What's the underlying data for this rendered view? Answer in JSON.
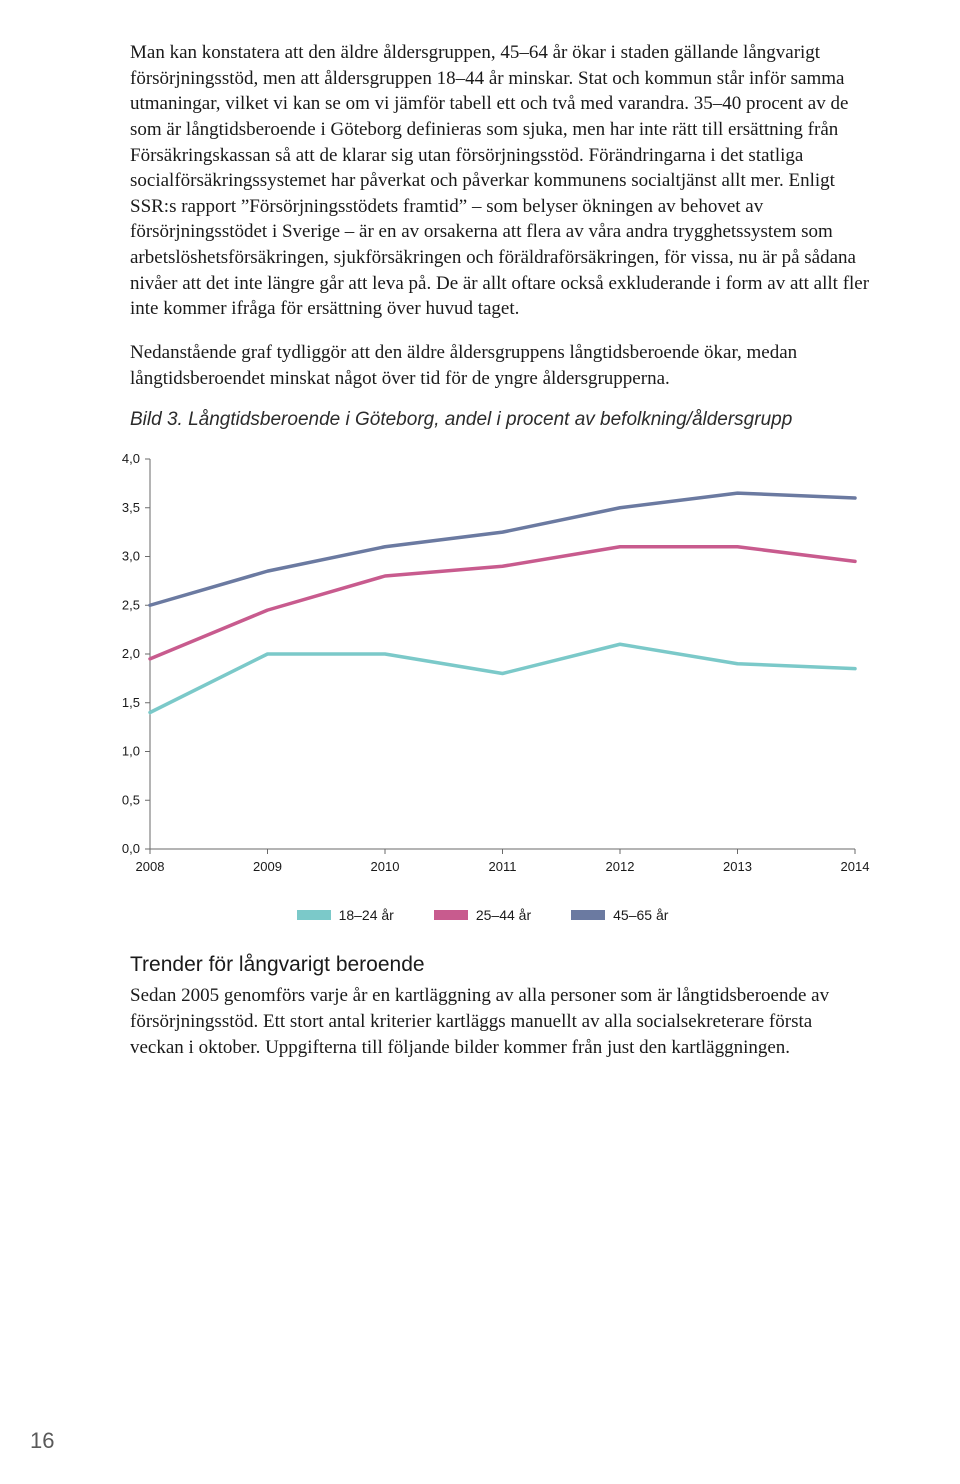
{
  "paragraphs": {
    "p1": "Man kan konstatera att den äldre åldersgruppen, 45–64 år ökar i staden gällande långvarigt försörjningsstöd, men att åldersgruppen 18–44 år minskar. Stat och kommun står inför samma utmaningar, vilket vi kan se om vi jämför tabell ett och två med varandra. 35–40 procent av de som är långtidsberoende i Göteborg definieras som sjuka, men har inte rätt till ersättning från Försäkringskassan så att de klarar sig utan försörjningsstöd. Förändringarna i det statliga socialförsäkringssystemet har påverkat och påverkar kommunens socialtjänst allt mer. Enligt SSR:s rapport ”Försörjningsstödets framtid” – som belyser ökningen av behovet av försörjningsstödet i Sverige – är en av orsakerna att flera av våra andra trygghetssystem som arbetslöshetsförsäkringen, sjukförsäkringen och föräldraförsäkringen, för vissa, nu är på sådana nivåer att det inte längre går att leva på. De är allt oftare också exkluderande i form av att allt fler inte kommer ifråga för ersättning över huvud taget.",
    "p2": "Nedanstående graf tydliggör att den äldre åldersgruppens långtidsberoende ökar, medan långtidsberoendet minskat något över tid för de yngre åldersgrupperna.",
    "p3": "Sedan 2005 genomförs varje år en kartläggning av alla personer som är långtidsberoende av försörjningsstöd. Ett stort antal kriterier kartläggs manuellt av alla socialsekreterare första veckan i oktober. Uppgifterna till följande bilder kommer från just den kartläggningen."
  },
  "figure_caption": "Bild 3. Långtidsberoende i Göteborg, andel i procent av befolkning/åldersgrupp",
  "section_heading": "Trender för långvarigt beroende",
  "page_number": "16",
  "chart": {
    "type": "line",
    "background_color": "#ffffff",
    "grid_color": "#cfcfcf",
    "axis_color": "#6a6a6a",
    "line_width": 3.5,
    "label_fontsize": 13,
    "x_labels": [
      "2008",
      "2009",
      "2010",
      "2011",
      "2012",
      "2013",
      "2014"
    ],
    "y_labels": [
      "0,0",
      "0,5",
      "1,0",
      "1,5",
      "2,0",
      "2,5",
      "3,0",
      "3,5",
      "4,0"
    ],
    "ylim": [
      0,
      4
    ],
    "ytick_step": 0.5,
    "series": [
      {
        "name": "45–65 år",
        "color": "#6B7AA1",
        "values": [
          2.5,
          2.85,
          3.1,
          3.25,
          3.5,
          3.65,
          3.6
        ]
      },
      {
        "name": "25–44 år",
        "color": "#C85B8E",
        "values": [
          1.95,
          2.45,
          2.8,
          2.9,
          3.1,
          3.1,
          2.95
        ]
      },
      {
        "name": "18–24 år",
        "color": "#7BC9C9",
        "values": [
          1.4,
          2.0,
          2.0,
          1.8,
          2.1,
          1.9,
          1.85
        ]
      }
    ],
    "legend_items": [
      {
        "label": "18–24 år",
        "color": "#7BC9C9"
      },
      {
        "label": "25–44 år",
        "color": "#C85B8E"
      },
      {
        "label": "45–65 år",
        "color": "#6B7AA1"
      }
    ]
  }
}
